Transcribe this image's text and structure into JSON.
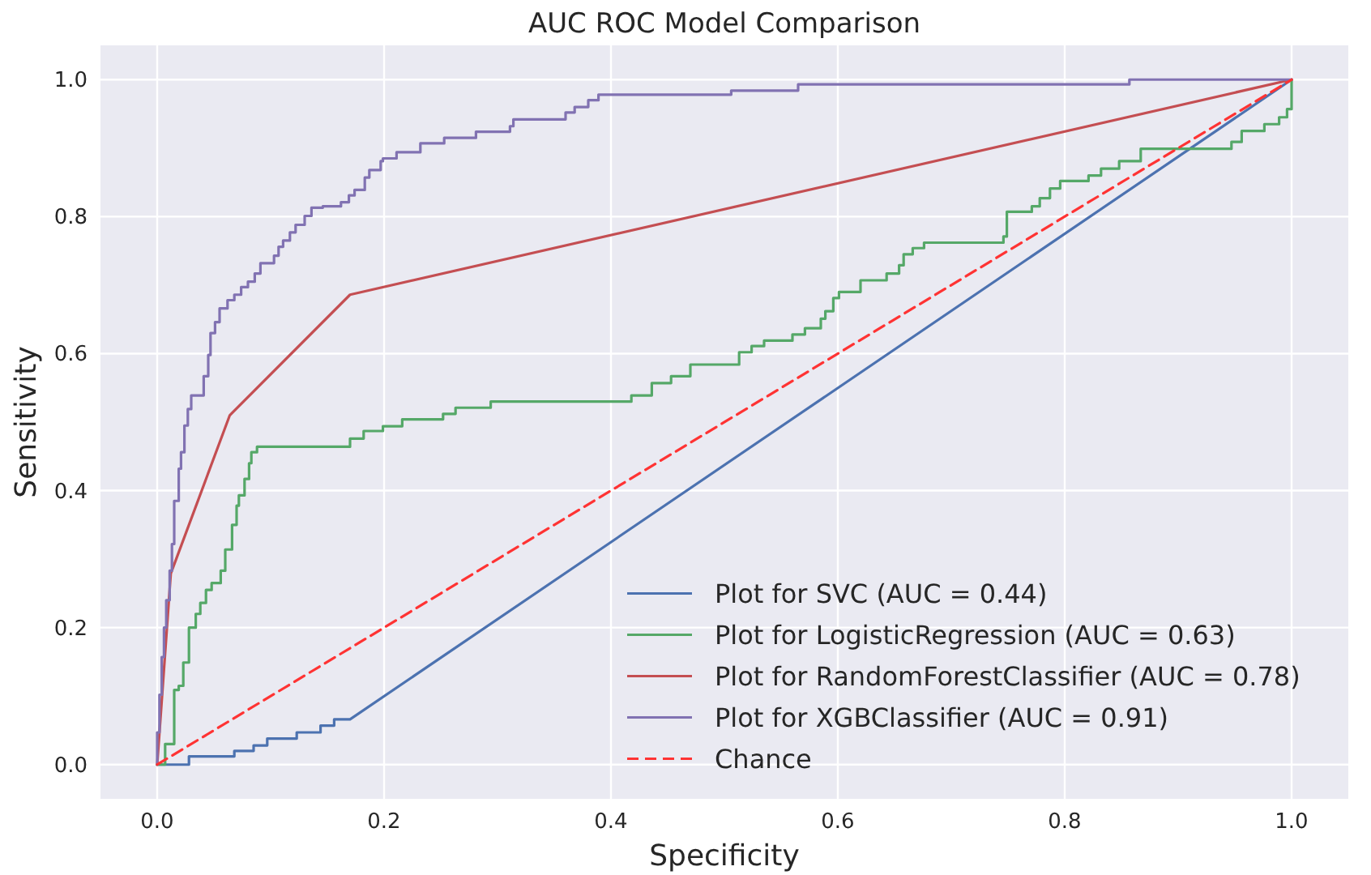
{
  "chart_data": {
    "type": "line",
    "title": "AUC ROC Model Comparison",
    "xlabel": "Specificity",
    "ylabel": "Sensitivity",
    "xlim": [
      -0.05,
      1.05
    ],
    "ylim": [
      -0.05,
      1.05
    ],
    "xticks": [
      {
        "value": 0,
        "label": "0.0"
      },
      {
        "value": 0.2,
        "label": "0.2"
      },
      {
        "value": 0.4,
        "label": "0.4"
      },
      {
        "value": 0.6,
        "label": "0.6"
      },
      {
        "value": 0.8,
        "label": "0.8"
      },
      {
        "value": 1,
        "label": "1.0"
      }
    ],
    "yticks": [
      {
        "value": 0,
        "label": "0.0"
      },
      {
        "value": 0.2,
        "label": "0.2"
      },
      {
        "value": 0.4,
        "label": "0.4"
      },
      {
        "value": 0.6,
        "label": "0.6"
      },
      {
        "value": 0.8,
        "label": "0.8"
      },
      {
        "value": 1,
        "label": "1.0"
      }
    ],
    "grid": true,
    "legend": "bottom right",
    "series": [
      {
        "name": "Plot for SVC (AUC = 0.44)",
        "type": "line",
        "color": "#4c72b0",
        "x": [
          0,
          0.028,
          0.028,
          0.068,
          0.068,
          0.085,
          0.085,
          0.097,
          0.097,
          0.123,
          0.123,
          0.144,
          0.144,
          0.156,
          0.156,
          0.17,
          1
        ],
        "values": [
          0,
          0,
          0.012,
          0.012,
          0.02,
          0.02,
          0.028,
          0.028,
          0.038,
          0.038,
          0.047,
          0.047,
          0.057,
          0.057,
          0.066,
          0.066,
          1
        ]
      },
      {
        "name": "Plot for LogisticRegression (AUC = 0.63)",
        "type": "step",
        "color": "#55a868",
        "x": [
          0,
          0.007,
          0.015,
          0.019,
          0.023,
          0.028,
          0.034,
          0.038,
          0.043,
          0.048,
          0.056,
          0.06,
          0.066,
          0.07,
          0.072,
          0.077,
          0.081,
          0.083,
          0.088,
          0.17,
          0.182,
          0.199,
          0.216,
          0.252,
          0.263,
          0.294,
          0.418,
          0.436,
          0.453,
          0.47,
          0.513,
          0.524,
          0.535,
          0.56,
          0.571,
          0.585,
          0.589,
          0.596,
          0.601,
          0.62,
          0.643,
          0.654,
          0.658,
          0.666,
          0.676,
          0.746,
          0.749,
          0.771,
          0.778,
          0.787,
          0.796,
          0.821,
          0.832,
          0.848,
          0.867,
          0.947,
          0.956,
          0.976,
          0.989,
          0.996,
          1.0
        ],
        "values": [
          0,
          0.03,
          0.109,
          0.115,
          0.149,
          0.2,
          0.22,
          0.236,
          0.255,
          0.265,
          0.283,
          0.314,
          0.35,
          0.378,
          0.393,
          0.417,
          0.44,
          0.456,
          0.464,
          0.476,
          0.487,
          0.494,
          0.504,
          0.512,
          0.521,
          0.53,
          0.539,
          0.557,
          0.567,
          0.584,
          0.602,
          0.611,
          0.619,
          0.628,
          0.637,
          0.651,
          0.662,
          0.681,
          0.69,
          0.707,
          0.717,
          0.729,
          0.745,
          0.754,
          0.762,
          0.771,
          0.807,
          0.815,
          0.827,
          0.841,
          0.852,
          0.86,
          0.87,
          0.881,
          0.899,
          0.909,
          0.925,
          0.935,
          0.945,
          0.957,
          1.0
        ]
      },
      {
        "name": "Plot for RandomForestClassifier (AUC = 0.78)",
        "type": "line",
        "color": "#c44e52",
        "x": [
          0,
          0.012,
          0.064,
          0.17,
          1
        ],
        "values": [
          0,
          0.279,
          0.51,
          0.686,
          1
        ]
      },
      {
        "name": "Plot for XGBClassifier (AUC = 0.91)",
        "type": "step",
        "color": "#8172b2",
        "x": [
          0,
          0,
          0.002,
          0.004,
          0.006,
          0.008,
          0.011,
          0.013,
          0.015,
          0.019,
          0.021,
          0.024,
          0.027,
          0.03,
          0.041,
          0.045,
          0.047,
          0.051,
          0.055,
          0.062,
          0.068,
          0.074,
          0.08,
          0.086,
          0.091,
          0.103,
          0.107,
          0.111,
          0.117,
          0.122,
          0.13,
          0.136,
          0.146,
          0.162,
          0.169,
          0.174,
          0.183,
          0.187,
          0.197,
          0.199,
          0.211,
          0.232,
          0.253,
          0.281,
          0.311,
          0.314,
          0.36,
          0.368,
          0.38,
          0.389,
          0.506,
          0.565,
          0.857,
          1.0
        ],
        "values": [
          0,
          0.047,
          0.102,
          0.157,
          0.2,
          0.24,
          0.283,
          0.322,
          0.385,
          0.432,
          0.456,
          0.495,
          0.519,
          0.539,
          0.567,
          0.598,
          0.63,
          0.646,
          0.666,
          0.678,
          0.686,
          0.697,
          0.705,
          0.717,
          0.732,
          0.743,
          0.756,
          0.765,
          0.777,
          0.788,
          0.801,
          0.813,
          0.815,
          0.821,
          0.831,
          0.839,
          0.857,
          0.868,
          0.881,
          0.885,
          0.894,
          0.907,
          0.915,
          0.924,
          0.932,
          0.942,
          0.952,
          0.96,
          0.97,
          0.978,
          0.984,
          0.993,
          1.0,
          1.0
        ]
      },
      {
        "name": "Chance",
        "type": "line",
        "color": "#ff3333",
        "line_style": "dashed",
        "x": [
          0,
          1
        ],
        "values": [
          0,
          1
        ]
      }
    ]
  }
}
